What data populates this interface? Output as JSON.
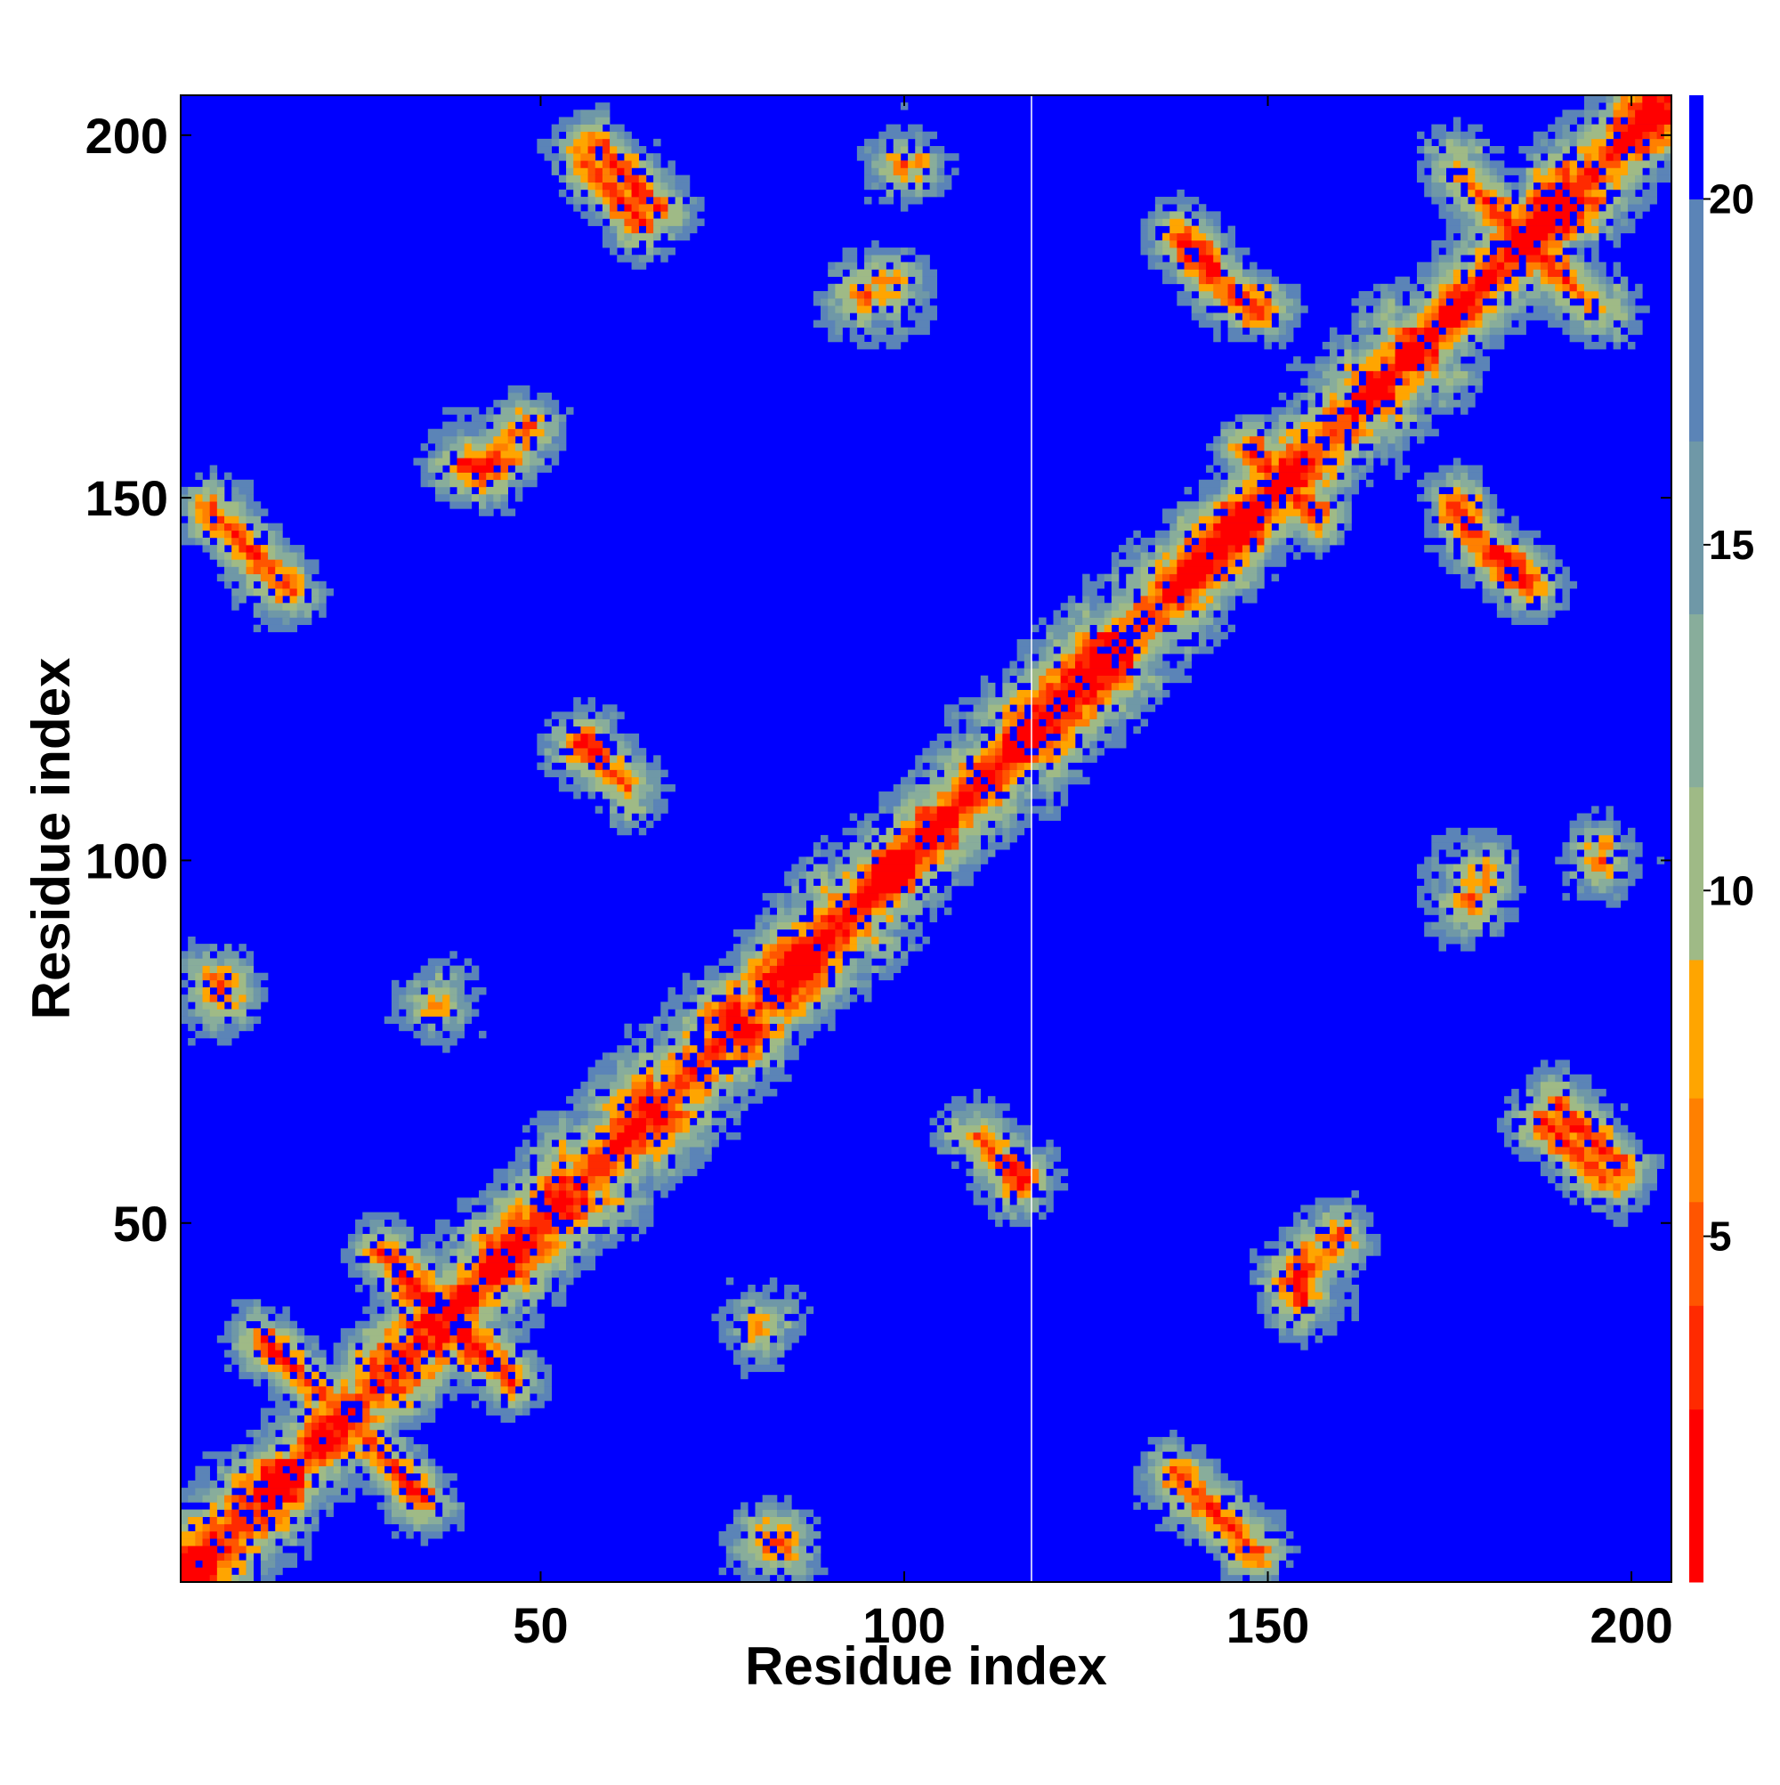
{
  "chart_data": {
    "type": "heatmap",
    "title": "",
    "xlabel": "Residue index",
    "ylabel": "Residue index",
    "xlim": [
      1,
      205
    ],
    "ylim": [
      1,
      205
    ],
    "x_ticks": [
      50,
      100,
      150,
      200
    ],
    "y_ticks": [
      50,
      100,
      150,
      200
    ],
    "colorbar": {
      "range": [
        0,
        21.5
      ],
      "ticks": [
        5,
        10,
        15,
        20
      ],
      "colors": [
        "#ff0000",
        "#ff2a00",
        "#ff5500",
        "#ff8000",
        "#ffa500",
        "#9fba86",
        "#88ad9b",
        "#6f98a7",
        "#5b84b7",
        "#0000ff"
      ],
      "bounds": [
        0,
        2.5,
        4,
        5.5,
        7,
        9,
        11.5,
        14,
        16.5,
        20,
        21.5
      ]
    },
    "palette_note_free": true,
    "contact_features": [
      {
        "kind": "diagonal",
        "x": [
          1,
          205
        ],
        "y": [
          1,
          205
        ]
      },
      {
        "kind": "antiparallel",
        "x": [
          5,
          15
        ],
        "y": [
          148,
          138
        ]
      },
      {
        "kind": "antiparallel",
        "x": [
          148,
          138
        ],
        "y": [
          5,
          15
        ]
      },
      {
        "kind": "antiparallel",
        "x": [
          28,
          46
        ],
        "y": [
          46,
          28
        ]
      },
      {
        "kind": "antiparallel",
        "x": [
          12,
          24
        ],
        "y": [
          34,
          22
        ]
      },
      {
        "kind": "antiparallel",
        "x": [
          29,
          36
        ],
        "y": [
          16,
          9
        ]
      },
      {
        "kind": "antiparallel",
        "x": [
          56,
          64
        ],
        "y": [
          196,
          188
        ]
      },
      {
        "kind": "antiparallel",
        "x": [
          188,
          196
        ],
        "y": [
          64,
          56
        ]
      },
      {
        "kind": "antiparallel",
        "x": [
          56,
          62
        ],
        "y": [
          116,
          110
        ]
      },
      {
        "kind": "antiparallel",
        "x": [
          110,
          116
        ],
        "y": [
          62,
          56
        ]
      },
      {
        "kind": "antiparallel",
        "x": [
          140,
          148
        ],
        "y": [
          184,
          176
        ]
      },
      {
        "kind": "antiparallel",
        "x": [
          176,
          184
        ],
        "y": [
          148,
          140
        ]
      },
      {
        "kind": "antiparallel",
        "x": [
          176,
          195
        ],
        "y": [
          195,
          176
        ]
      },
      {
        "kind": "antiparallel",
        "x": [
          176,
          186
        ],
        "y": [
          148,
          138
        ]
      },
      {
        "kind": "antiparallel",
        "x": [
          138,
          148
        ],
        "y": [
          186,
          176
        ]
      },
      {
        "kind": "antiparallel",
        "x": [
          154,
          160
        ],
        "y": [
          42,
          48
        ]
      },
      {
        "kind": "antiparallel",
        "x": [
          42,
          48
        ],
        "y": [
          154,
          160
        ]
      },
      {
        "kind": "parallel",
        "x": [
          162,
          170
        ],
        "y": [
          162,
          170
        ]
      },
      {
        "kind": "antiparallel",
        "x": [
          148,
          158
        ],
        "y": [
          156,
          146
        ]
      },
      {
        "kind": "antiparallel",
        "x": [
          190,
          198
        ],
        "y": [
          66,
          58
        ]
      },
      {
        "kind": "antiparallel",
        "x": [
          58,
          66
        ],
        "y": [
          198,
          190
        ]
      },
      {
        "kind": "spot",
        "x": 6,
        "y": 82
      },
      {
        "kind": "spot",
        "x": 82,
        "y": 6
      },
      {
        "kind": "spot",
        "x": 36,
        "y": 80
      },
      {
        "kind": "spot",
        "x": 80,
        "y": 36
      },
      {
        "kind": "spot",
        "x": 80,
        "y": 37
      },
      {
        "kind": "spot",
        "x": 95,
        "y": 178
      },
      {
        "kind": "spot",
        "x": 178,
        "y": 95
      },
      {
        "kind": "spot",
        "x": 178,
        "y": 98
      },
      {
        "kind": "spot",
        "x": 98,
        "y": 178
      },
      {
        "kind": "spot",
        "x": 40,
        "y": 155
      },
      {
        "kind": "spot",
        "x": 155,
        "y": 40
      },
      {
        "kind": "spot",
        "x": 196,
        "y": 100
      },
      {
        "kind": "spot",
        "x": 100,
        "y": 196
      }
    ]
  }
}
